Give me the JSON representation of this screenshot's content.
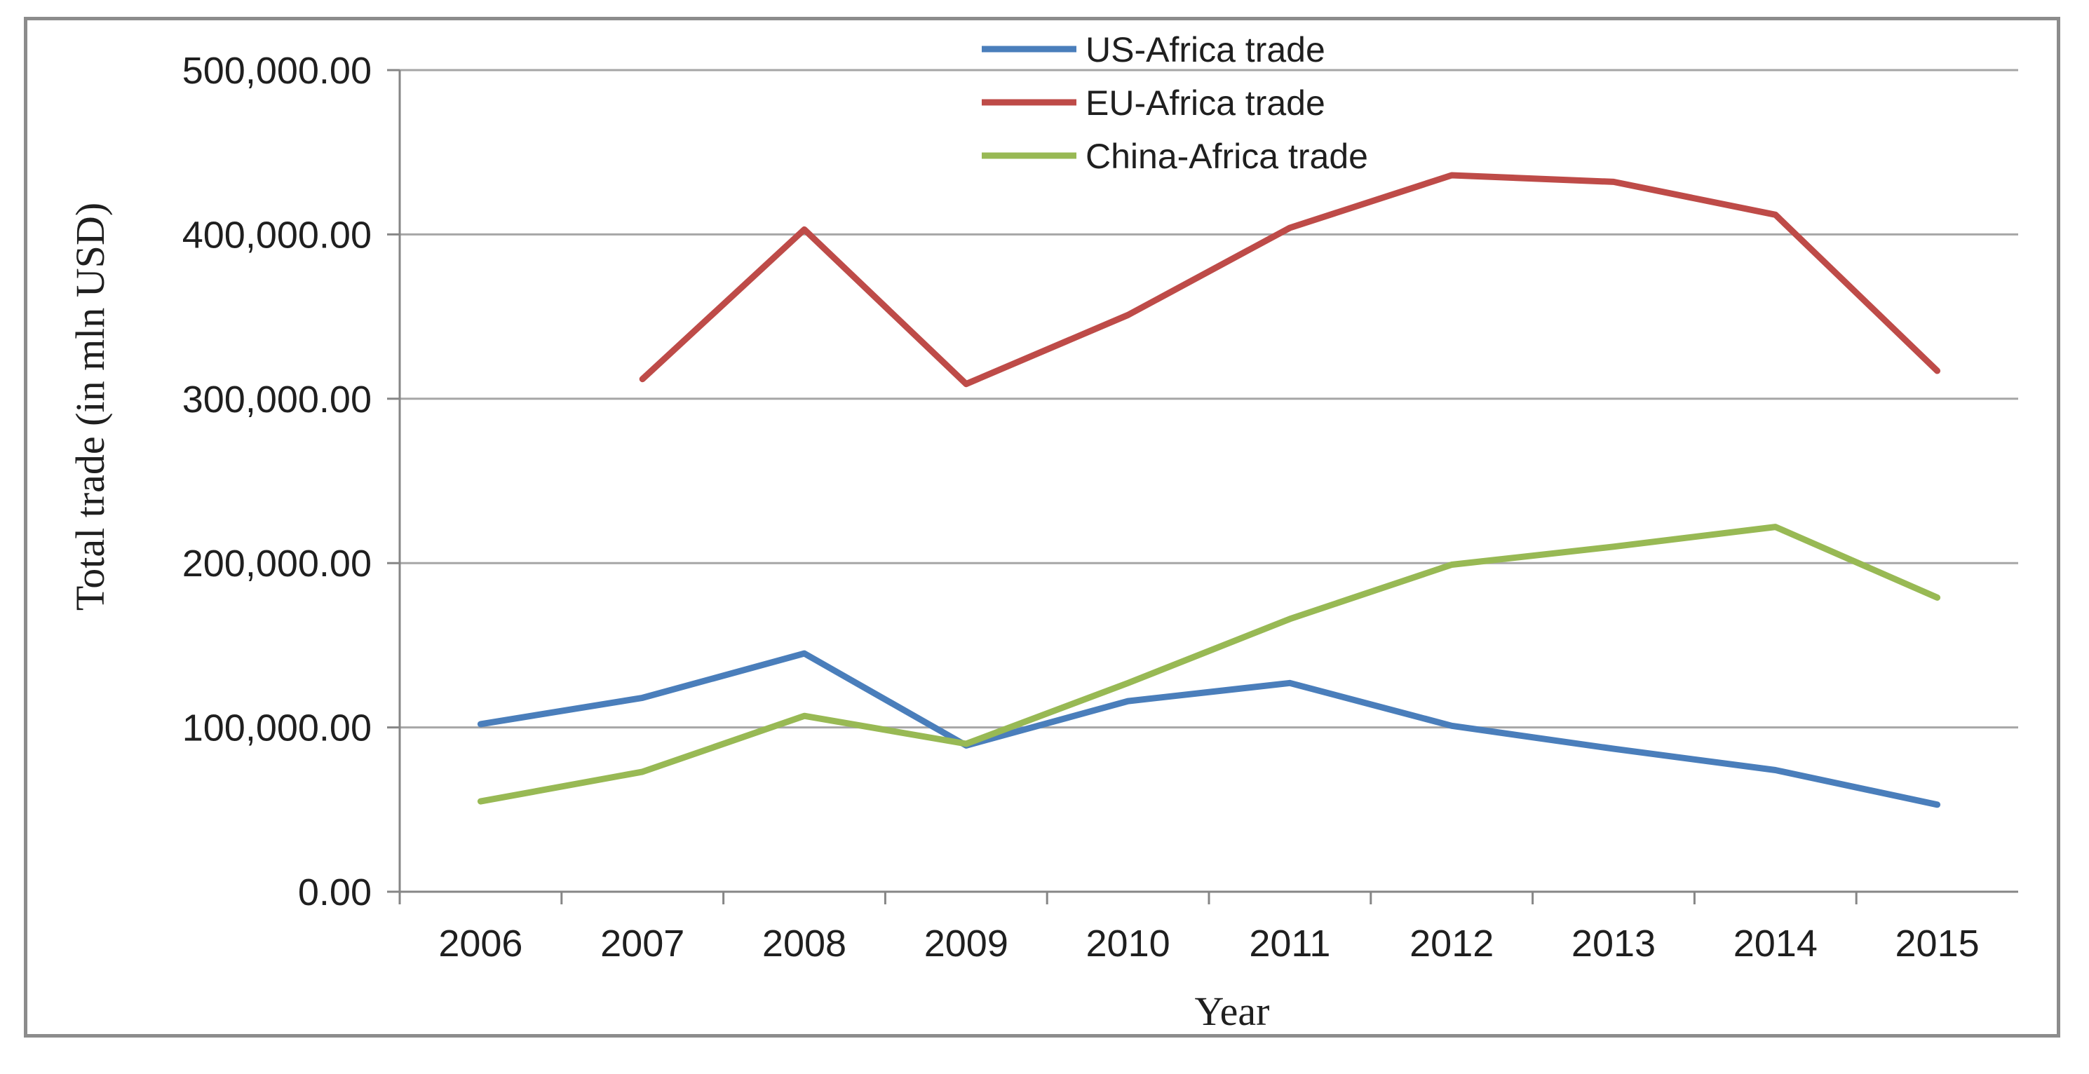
{
  "chart_data": {
    "type": "line",
    "title": "",
    "xlabel": "Year",
    "ylabel": "Total trade (in mln USD)",
    "ylim": [
      0,
      500000
    ],
    "yticks": [
      "0.00",
      "100,000.00",
      "200,000.00",
      "300,000.00",
      "400,000.00",
      "500,000.00"
    ],
    "ytick_values": [
      0,
      100000,
      200000,
      300000,
      400000,
      500000
    ],
    "categories": [
      "2006",
      "2007",
      "2008",
      "2009",
      "2010",
      "2011",
      "2012",
      "2013",
      "2014",
      "2015"
    ],
    "grid": true,
    "legend_position": "top-center",
    "series": [
      {
        "name": "US-Africa trade",
        "color": "#4a7ebb",
        "values": [
          102000,
          118000,
          145000,
          89000,
          116000,
          127000,
          101000,
          87000,
          74000,
          53000
        ]
      },
      {
        "name": "EU-Africa trade",
        "color": "#be4b48",
        "values": [
          null,
          312000,
          403000,
          309000,
          351000,
          404000,
          436000,
          432000,
          412000,
          317000
        ]
      },
      {
        "name": "China-Africa trade",
        "color": "#98b954",
        "values": [
          55000,
          73000,
          107000,
          90000,
          127000,
          166000,
          199000,
          210000,
          222000,
          179000
        ]
      }
    ]
  }
}
